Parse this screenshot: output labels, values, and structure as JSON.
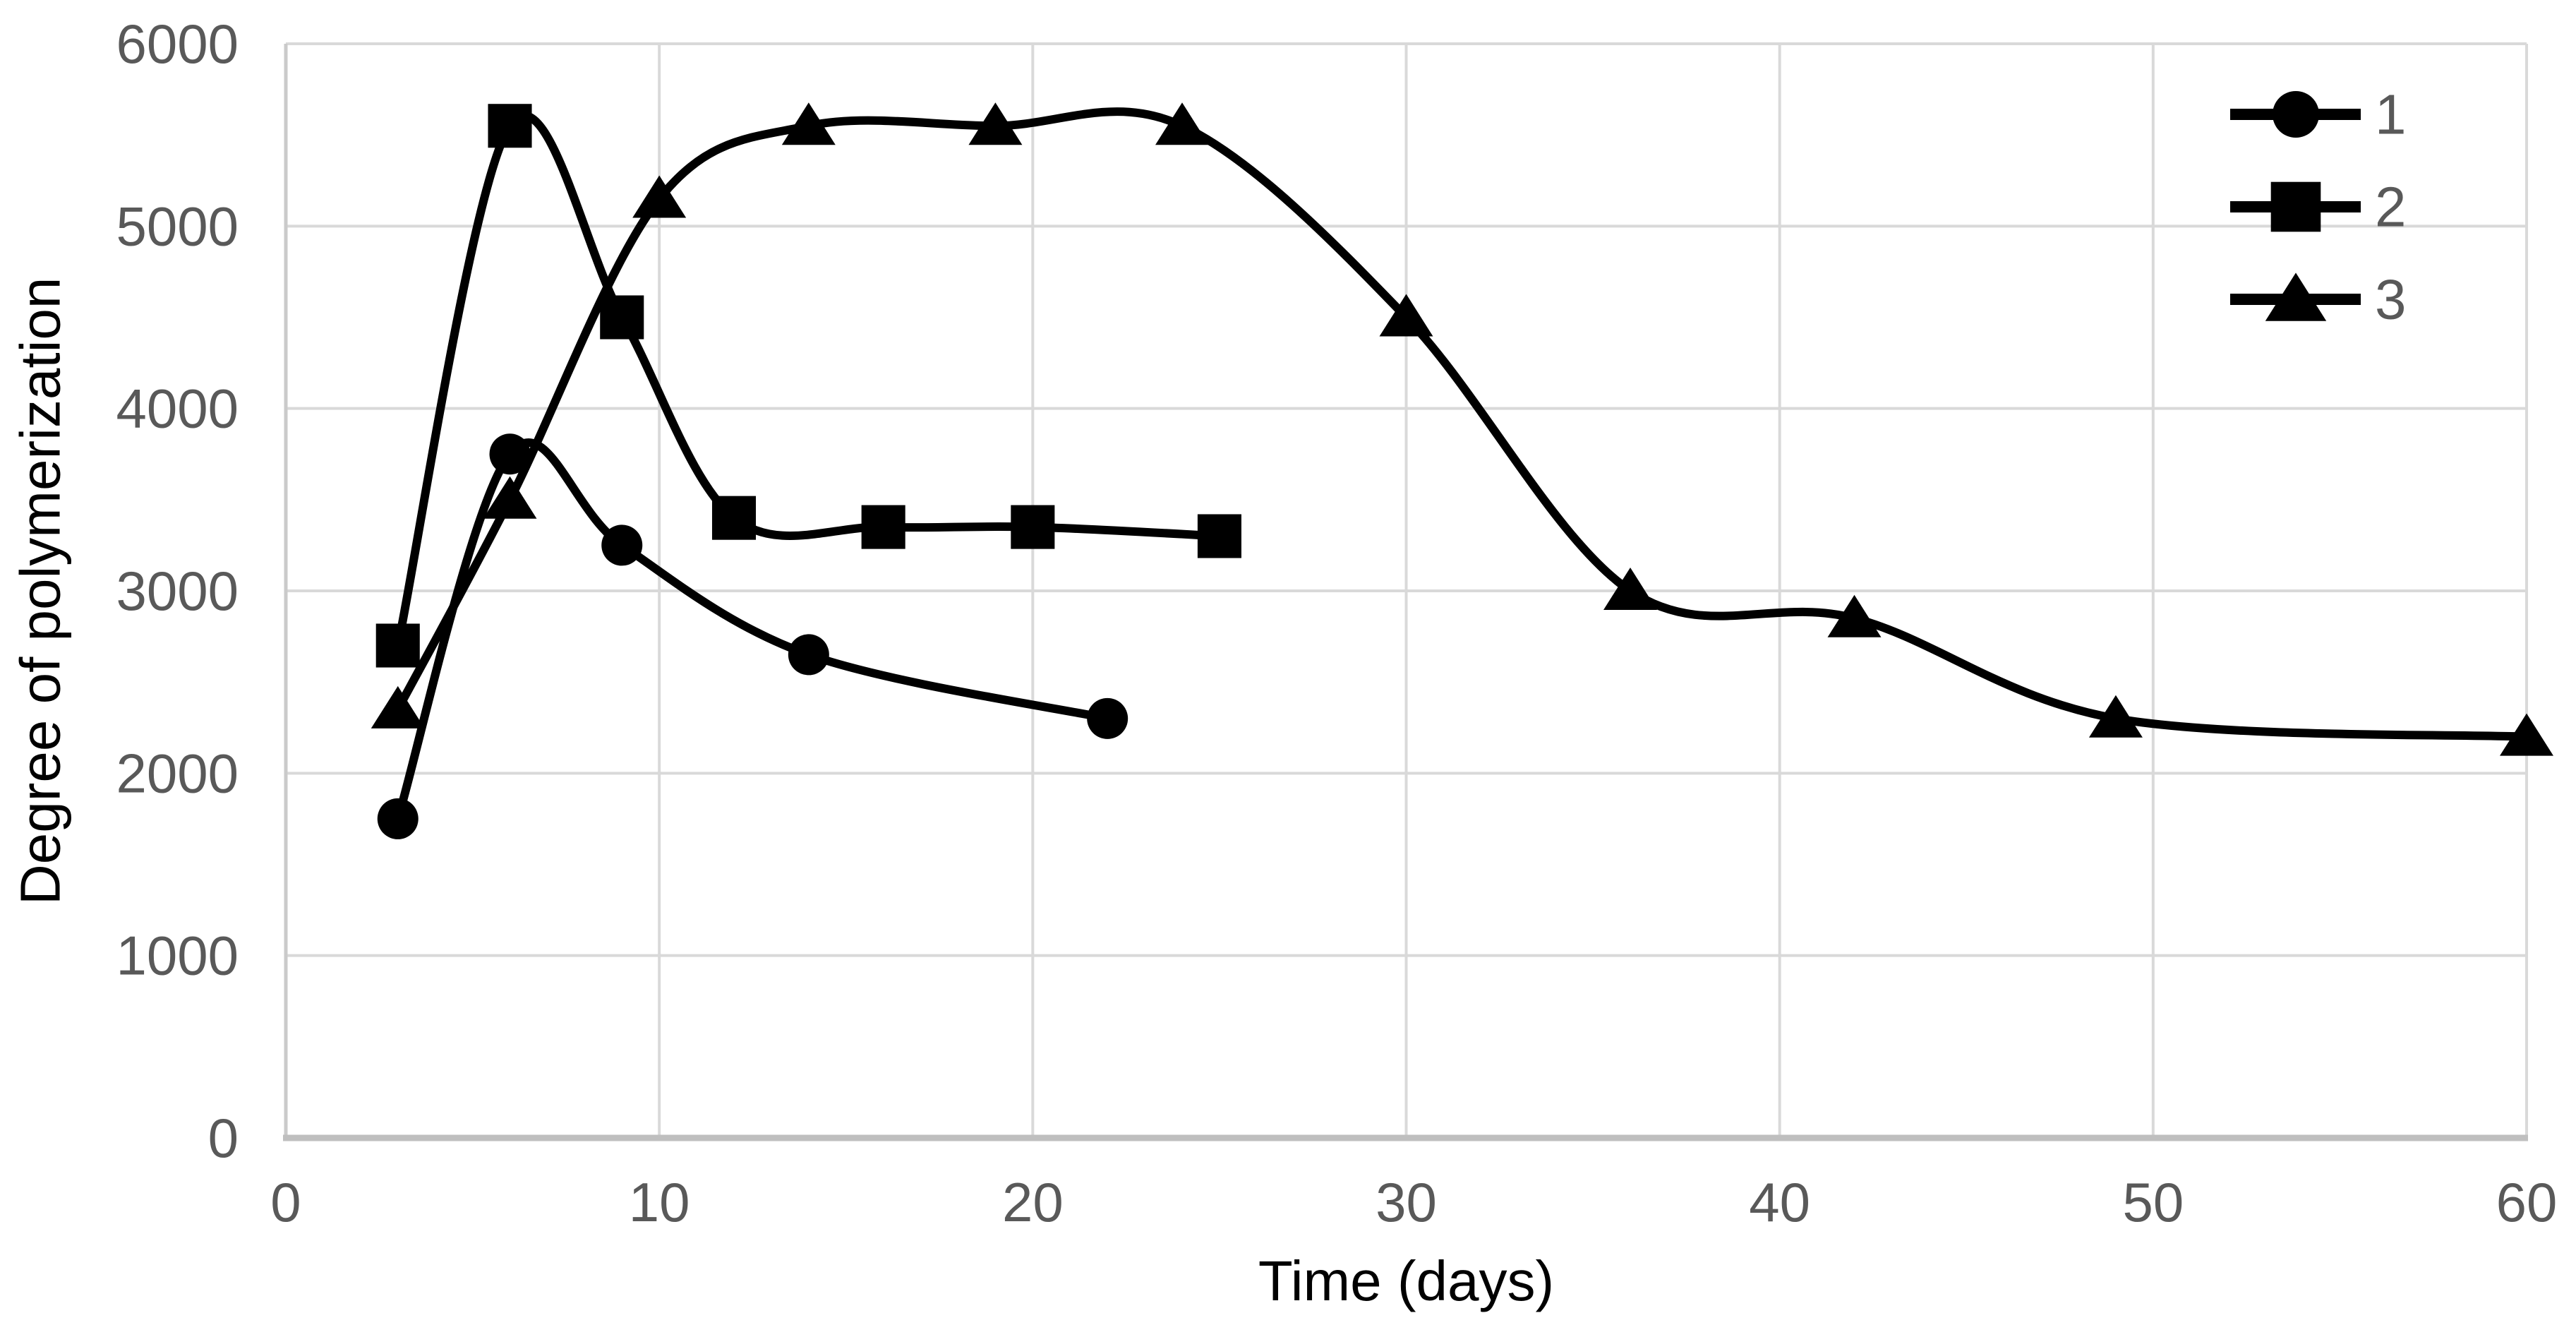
{
  "chart_data": {
    "type": "line",
    "title": "",
    "xlabel": "Time (days)",
    "ylabel": "Degree of polymerization",
    "xlim": [
      0,
      60
    ],
    "ylim": [
      0,
      6000
    ],
    "xticks": [
      0,
      10,
      20,
      30,
      40,
      50,
      60
    ],
    "yticks": [
      0,
      1000,
      2000,
      3000,
      4000,
      5000,
      6000
    ],
    "grid": true,
    "smooth": true,
    "legend_position": "top-right",
    "legend_entries": [
      "1",
      "2",
      "3"
    ],
    "series": [
      {
        "name": "1",
        "marker": "circle",
        "x": [
          3,
          6,
          9,
          14,
          22
        ],
        "y": [
          1750,
          3750,
          3250,
          2650,
          2300
        ]
      },
      {
        "name": "2",
        "marker": "square",
        "x": [
          3,
          6,
          9,
          12,
          16,
          20,
          25
        ],
        "y": [
          2700,
          5550,
          4500,
          3400,
          3350,
          3350,
          3300
        ]
      },
      {
        "name": "3",
        "marker": "triangle",
        "x": [
          3,
          6,
          10,
          14,
          19,
          24,
          30,
          36,
          42,
          49,
          60
        ],
        "y": [
          2350,
          3500,
          5150,
          5550,
          5550,
          5550,
          4500,
          3000,
          2850,
          2300,
          2200
        ]
      }
    ],
    "colors": {
      "series": "#000000",
      "gridline": "#D9D9D9",
      "axis_line": "#BFBFBF",
      "y_axis_line": "#CACACA",
      "tick_label": "#595959",
      "legend_label": "#595959",
      "axis_title": "#000000",
      "background": "#FFFFFF"
    }
  }
}
